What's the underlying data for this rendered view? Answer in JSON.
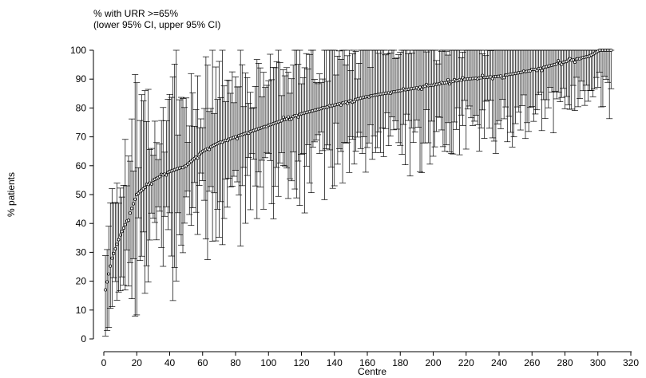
{
  "chart_data": {
    "type": "scatter",
    "title_lines": [
      "% with URR >=65%",
      "(lower 95% CI, upper 95% CI)"
    ],
    "xlabel": "Centre",
    "ylabel": "% patients",
    "xlim": [
      -5,
      322
    ],
    "ylim": [
      -2,
      103
    ],
    "xticks": [
      0,
      20,
      40,
      60,
      80,
      100,
      120,
      140,
      160,
      180,
      200,
      220,
      240,
      260,
      280,
      300,
      320
    ],
    "yticks": [
      0,
      10,
      20,
      30,
      40,
      50,
      60,
      70,
      80,
      90,
      100
    ],
    "grid": false,
    "legend": "none",
    "marker": "open-circle",
    "error_bars": "lower 95% CI to upper 95% CI",
    "curve_knots": {
      "centre": [
        1,
        5,
        10,
        15,
        20,
        30,
        40,
        50,
        60,
        70,
        80,
        90,
        100,
        120,
        140,
        160,
        180,
        200,
        220,
        240,
        260,
        280,
        295,
        301,
        308
      ],
      "percent": [
        17,
        28,
        36,
        42,
        50,
        55,
        58,
        60,
        65,
        68,
        70,
        72,
        74,
        78,
        81,
        84,
        86,
        88,
        90,
        91,
        93,
        96,
        98,
        100,
        100
      ]
    }
  }
}
